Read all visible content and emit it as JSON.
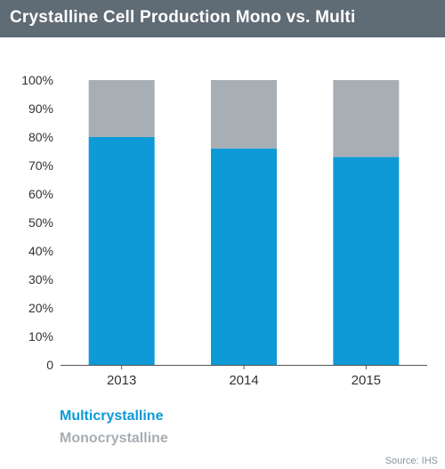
{
  "title": "Crystalline Cell Production Mono vs. Multi",
  "source": "Source: IHS",
  "colors": {
    "header_bg": "#5f6b75",
    "multicrystalline": "#0d9ad7",
    "monocrystalline": "#a7aeb4",
    "axis": "#555555"
  },
  "chart_data": {
    "type": "bar",
    "stacked": true,
    "categories": [
      "2013",
      "2014",
      "2015"
    ],
    "series": [
      {
        "name": "Multicrystalline",
        "values": [
          80,
          76,
          73
        ]
      },
      {
        "name": "Monocrystalline",
        "values": [
          20,
          24,
          27
        ]
      }
    ],
    "ylim": [
      0,
      100
    ],
    "yticks": [
      "0",
      "10%",
      "20%",
      "30%",
      "40%",
      "50%",
      "60%",
      "70%",
      "80%",
      "90%",
      "100%"
    ],
    "ytick_values": [
      0,
      10,
      20,
      30,
      40,
      50,
      60,
      70,
      80,
      90,
      100
    ],
    "grid": false,
    "legend": "bottom-left"
  }
}
